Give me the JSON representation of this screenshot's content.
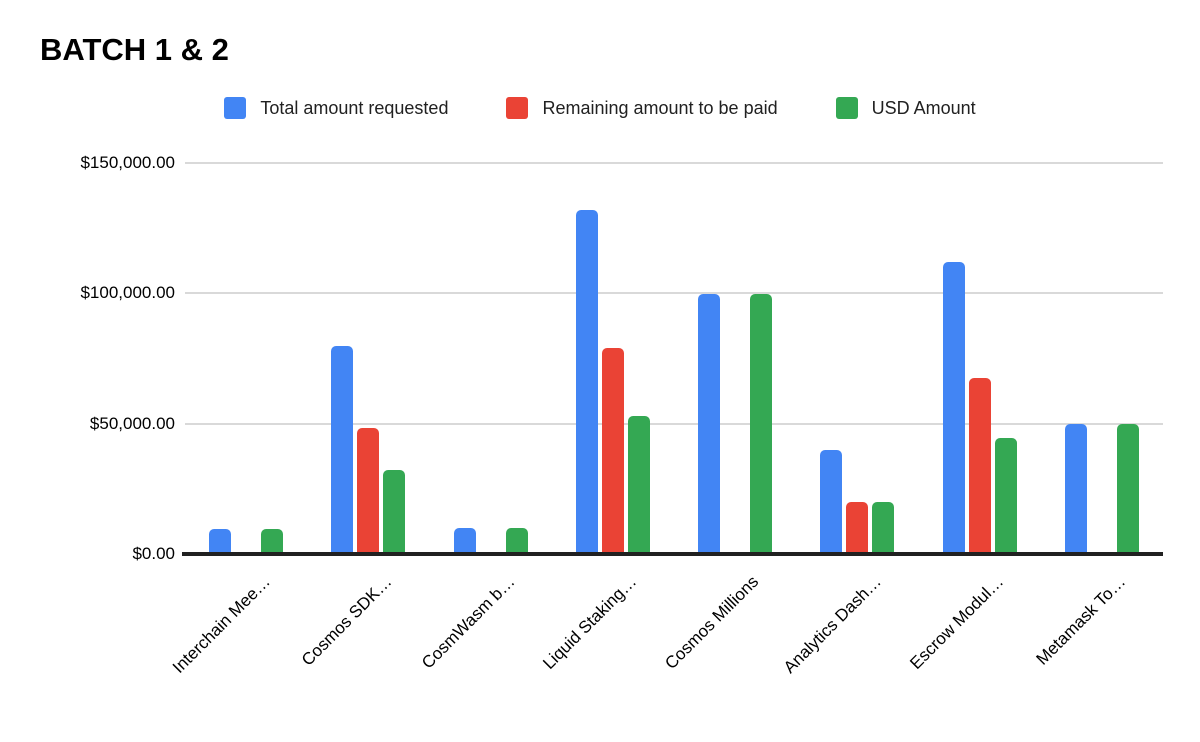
{
  "title": "BATCH 1 & 2",
  "legend": [
    {
      "label": "Total amount requested",
      "color": "#4285F4"
    },
    {
      "label": "Remaining amount to be paid",
      "color": "#EA4335"
    },
    {
      "label": "USD Amount",
      "color": "#34A853"
    }
  ],
  "chart_data": {
    "type": "bar",
    "title": "BATCH 1 & 2",
    "categories": [
      "Interchain Mee…",
      "Cosmos SDK…",
      "CosmWasm b…",
      "Liquid Staking…",
      "Cosmos Millions",
      "Analytics Dash…",
      "Escrow Modul…",
      "Metamask To…"
    ],
    "series": [
      {
        "name": "Total amount requested",
        "color": "#4285F4",
        "values": [
          9500,
          79800,
          10000,
          131800,
          99700,
          40000,
          112000,
          49800
        ]
      },
      {
        "name": "Remaining amount to be paid",
        "color": "#EA4335",
        "values": [
          0,
          48200,
          0,
          79200,
          0,
          20100,
          67400,
          0
        ]
      },
      {
        "name": "USD Amount",
        "color": "#34A853",
        "values": [
          9500,
          32200,
          10000,
          52800,
          99700,
          20100,
          44600,
          49800
        ]
      }
    ],
    "xlabel": "",
    "ylabel": "",
    "ylim": [
      0,
      150000
    ],
    "y_ticks": [
      {
        "value": 150000,
        "label": "$150,000.00"
      },
      {
        "value": 100000,
        "label": "$100,000.00"
      },
      {
        "value": 50000,
        "label": "$50,000.00"
      },
      {
        "value": 0,
        "label": "$0.00"
      }
    ],
    "grid": true,
    "legend_position": "top",
    "colors": {
      "background": "#ffffff",
      "gridline": "#d9d9d9",
      "axis_line": "#212121",
      "text": "#000000"
    }
  }
}
